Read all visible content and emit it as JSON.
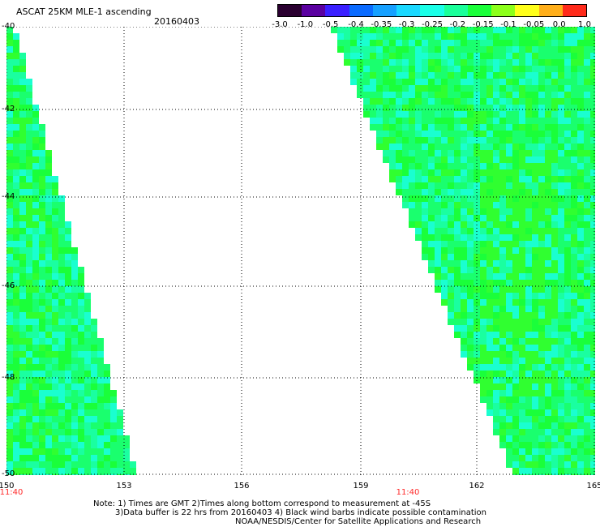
{
  "title": "ASCAT 25KM MLE-1 ascending",
  "date": "20160403",
  "colorbar": {
    "labels": [
      "-3.0",
      "-1.0",
      "-0.5",
      "-0.4",
      "-0.35",
      "-0.3",
      "-0.25",
      "-0.2",
      "-0.15",
      "-0.1",
      "-0.05",
      "0.0",
      "1.0"
    ],
    "colors": [
      "#2a0030",
      "#5a00a0",
      "#3a1fff",
      "#0a6bff",
      "#16a0ff",
      "#1ad8ff",
      "#1affe8",
      "#1aff9a",
      "#1aff3a",
      "#8cff1a",
      "#ffff1a",
      "#ffae1a",
      "#ff2a1a"
    ]
  },
  "axes": {
    "lat_labels": [
      "-40",
      "-42",
      "-44",
      "-46",
      "-48",
      "-50"
    ],
    "lon_labels": [
      "150",
      "153",
      "156",
      "159",
      "162",
      "165"
    ]
  },
  "times": [
    "11:40",
    "11:40"
  ],
  "notes": {
    "line1": "Note: 1) Times are GMT 2)Times along bottom correspond to measurement at -45S",
    "line2": "3)Data buffer is 22 hrs from 20160403 4) Black wind barbs indicate possible contamination",
    "line3": "NOAA/NESDIS/Center for Satellite Applications and Research"
  }
}
